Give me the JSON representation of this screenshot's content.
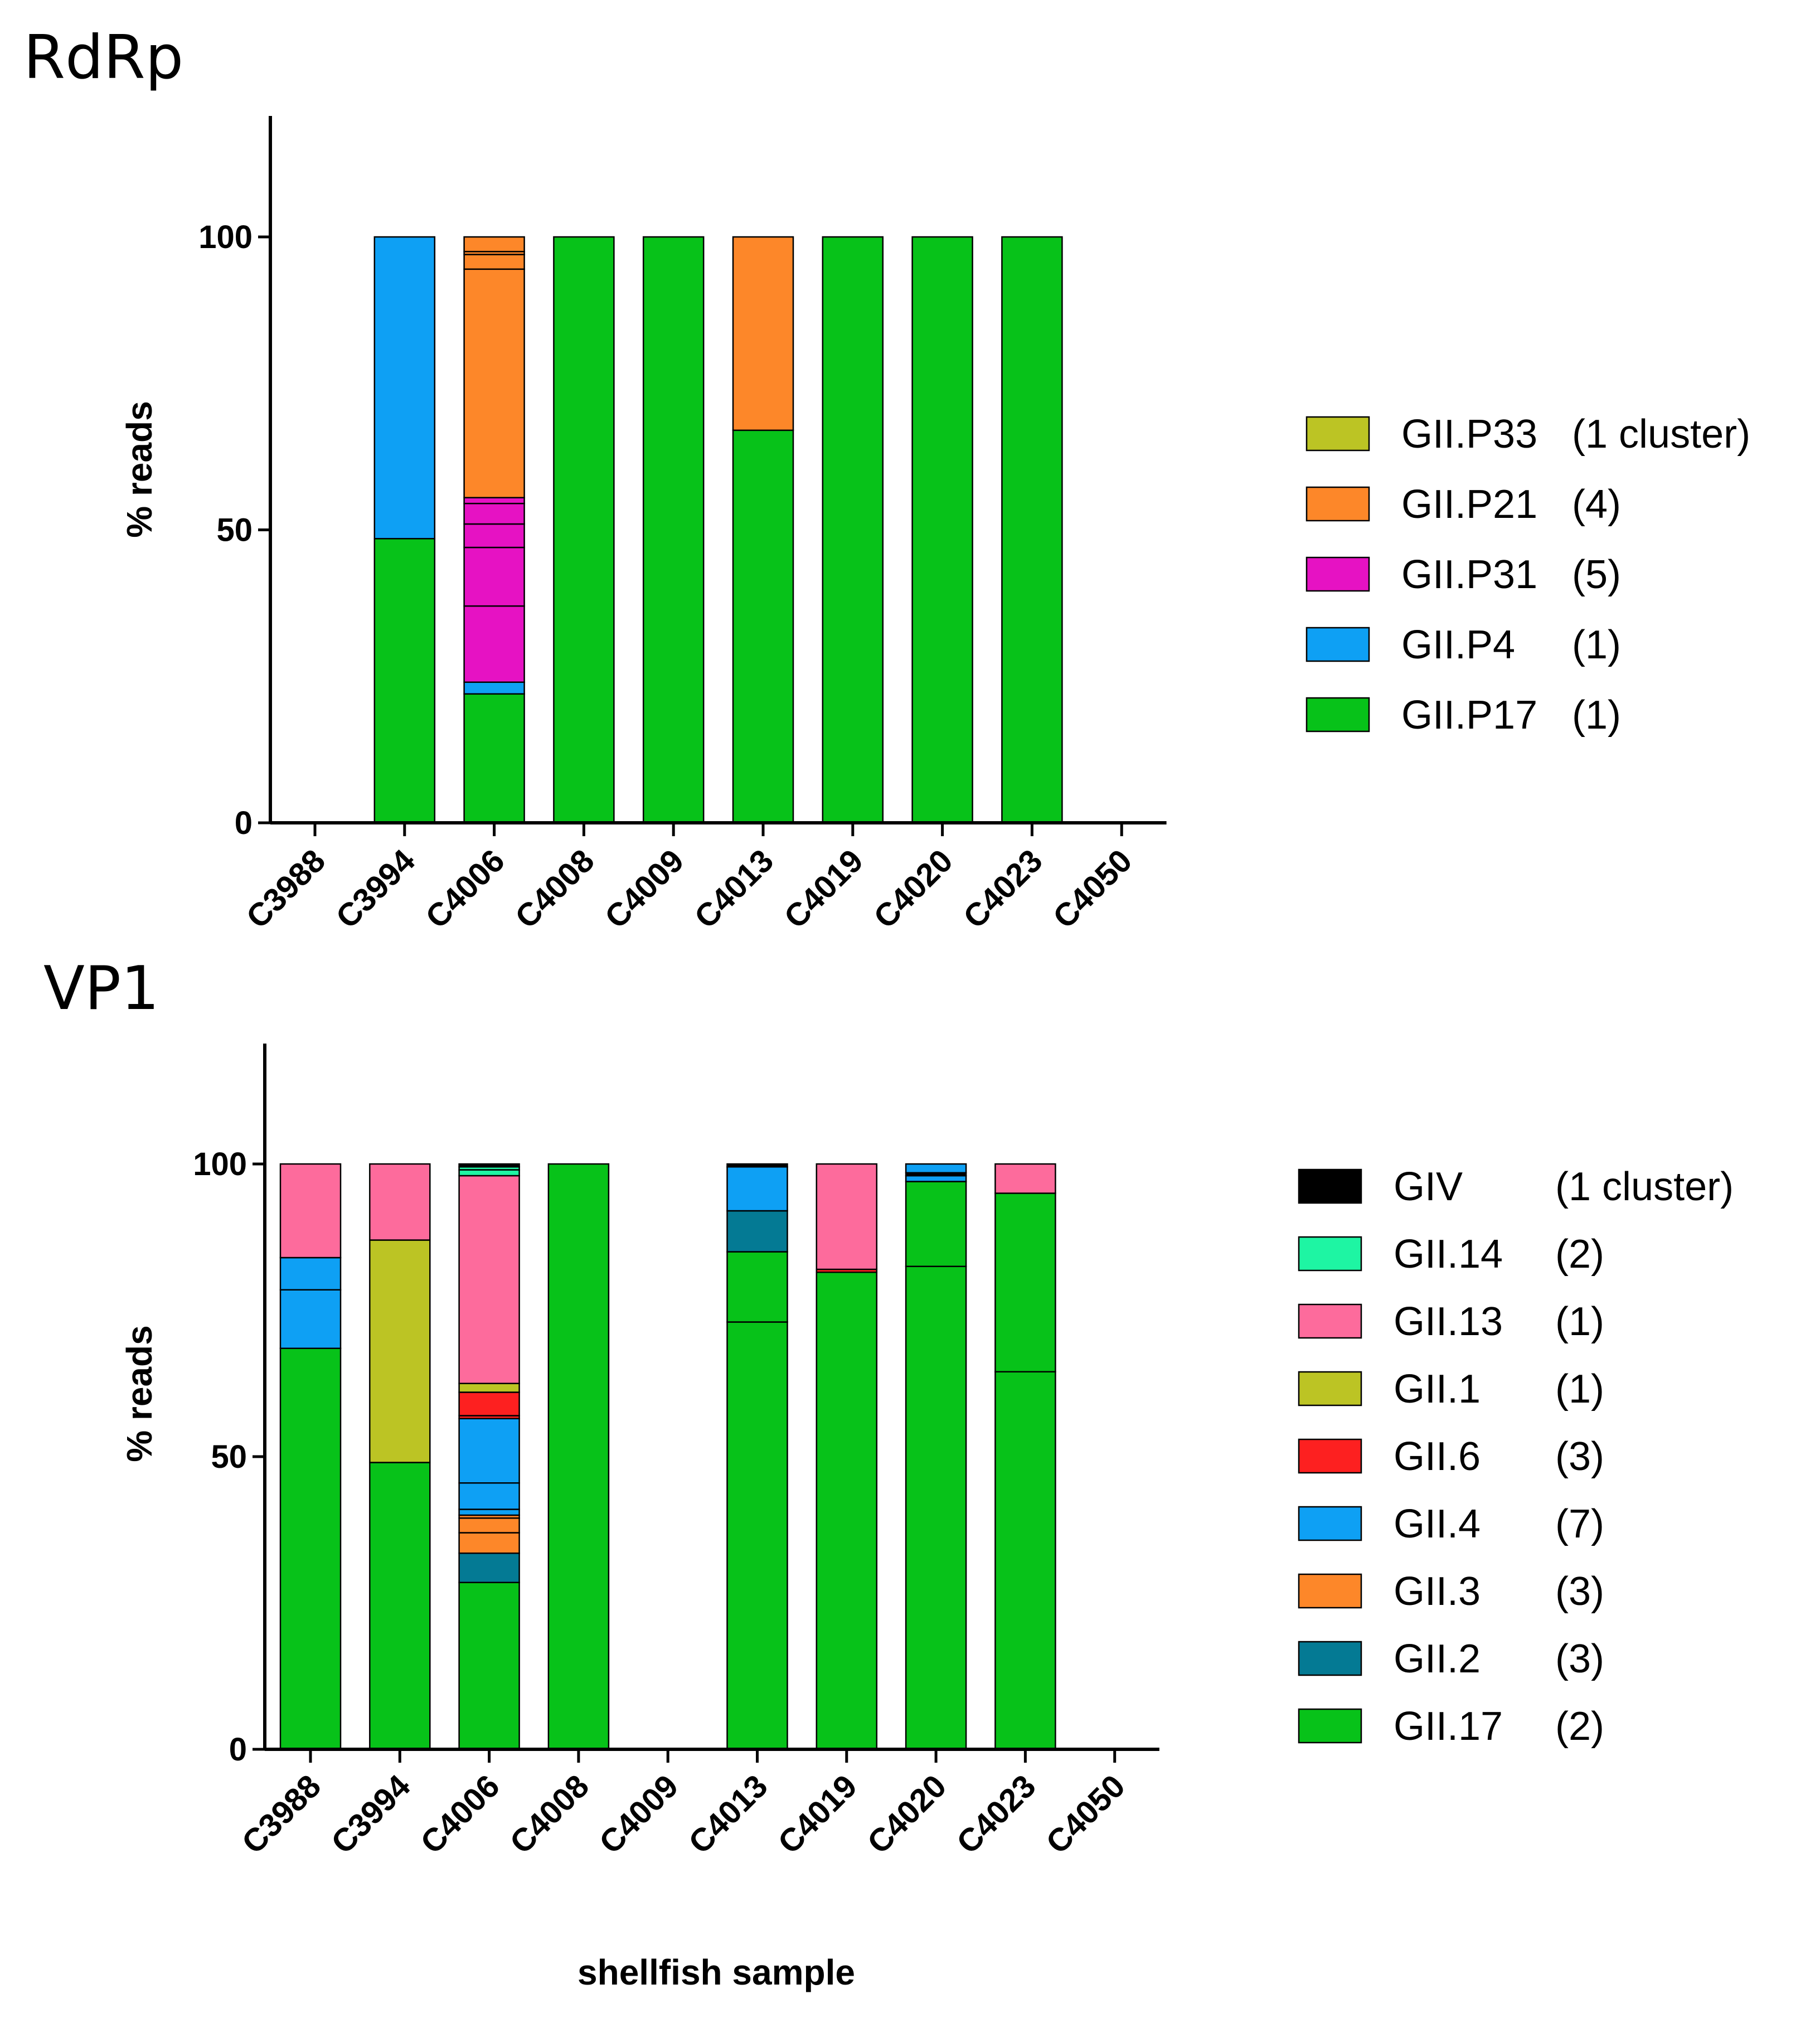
{
  "shared": {
    "xlabel": "shellfish sample",
    "color_map": {
      "GII.P33": "#BCC424",
      "GII.P21": "#FD8729",
      "GII.P31": "#E612C3",
      "GII.P4": "#0EA0F4",
      "GII.P17": "#07C219",
      "GIV": "#000000",
      "GII.14": "#1EF5A3",
      "GII.13": "#FD6B9C",
      "GII.1": "#BCC424",
      "GII.6": "#FD2020",
      "GII.4": "#0EA0F4",
      "GII.3": "#FD8729",
      "GII.2": "#047A94",
      "GII.17": "#07C219"
    }
  },
  "chart_data": [
    {
      "type": "bar",
      "stacked": true,
      "title": "RdRp",
      "xlabel": "",
      "ylabel": "% reads",
      "ylim": [
        0,
        120
      ],
      "yticks": [
        0,
        50,
        100
      ],
      "categories": [
        "C3988",
        "C3994",
        "C4006",
        "C4008",
        "C4009",
        "C4013",
        "C4019",
        "C4020",
        "C4023",
        "C4050"
      ],
      "legend": [
        {
          "name": "GII.P33",
          "count": "(1 cluster)"
        },
        {
          "name": "GII.P21",
          "count": "(4)"
        },
        {
          "name": "GII.P31",
          "count": "(5)"
        },
        {
          "name": "GII.P4",
          "count": "(1)"
        },
        {
          "name": "GII.P17",
          "count": "(1)"
        }
      ],
      "bars": [
        [],
        [
          [
            "GII.P17",
            48.5
          ],
          [
            "GII.P4",
            51.5
          ]
        ],
        [
          [
            "GII.P17",
            22
          ],
          [
            "GII.P4",
            2
          ],
          [
            "GII.P31",
            13
          ],
          [
            "GII.P31",
            10
          ],
          [
            "GII.P31",
            4
          ],
          [
            "GII.P31",
            3.5
          ],
          [
            "GII.P31",
            1
          ],
          [
            "GII.P21",
            39
          ],
          [
            "GII.P21",
            2.5
          ],
          [
            "GII.P21",
            0.5
          ],
          [
            "GII.P21",
            2.5
          ]
        ],
        [
          [
            "GII.P17",
            100
          ]
        ],
        [
          [
            "GII.P17",
            100
          ]
        ],
        [
          [
            "GII.P17",
            67
          ],
          [
            "GII.P21",
            33
          ]
        ],
        [
          [
            "GII.P17",
            100
          ]
        ],
        [
          [
            "GII.P17",
            100
          ]
        ],
        [
          [
            "GII.P17",
            100
          ]
        ],
        []
      ]
    },
    {
      "type": "bar",
      "stacked": true,
      "title": "VP1",
      "xlabel": "shellfish sample",
      "ylabel": "% reads",
      "ylim": [
        0,
        120
      ],
      "yticks": [
        0,
        50,
        100
      ],
      "categories": [
        "C3988",
        "C3994",
        "C4006",
        "C4008",
        "C4009",
        "C4013",
        "C4019",
        "C4020",
        "C4023",
        "C4050"
      ],
      "legend": [
        {
          "name": "GIV",
          "count": "(1 cluster)"
        },
        {
          "name": "GII.14",
          "count": "(2)"
        },
        {
          "name": "GII.13",
          "count": "(1)"
        },
        {
          "name": "GII.1",
          "count": "(1)"
        },
        {
          "name": "GII.6",
          "count": "(3)"
        },
        {
          "name": "GII.4",
          "count": "(7)"
        },
        {
          "name": "GII.3",
          "count": "(3)"
        },
        {
          "name": "GII.2",
          "count": "(3)"
        },
        {
          "name": "GII.17",
          "count": "(2)"
        }
      ],
      "bars": [
        [
          [
            "GII.17",
            68.5
          ],
          [
            "GII.4",
            10
          ],
          [
            "GII.4",
            5.5
          ],
          [
            "GII.13",
            16
          ]
        ],
        [
          [
            "GII.17",
            49
          ],
          [
            "GII.1",
            38
          ],
          [
            "GII.13",
            13
          ]
        ],
        [
          [
            "GII.17",
            28.5
          ],
          [
            "GII.2",
            5
          ],
          [
            "GII.3",
            3.5
          ],
          [
            "GII.3",
            2.5
          ],
          [
            "GII.3",
            0.5
          ],
          [
            "GII.4",
            1
          ],
          [
            "GII.4",
            4.5
          ],
          [
            "GII.4",
            11
          ],
          [
            "GII.6",
            0.5
          ],
          [
            "GII.6",
            4
          ],
          [
            "GII.1",
            1.5
          ],
          [
            "GII.13",
            35.5
          ],
          [
            "GII.14",
            1
          ],
          [
            "GII.14",
            0.5
          ],
          [
            "GIV",
            0.5
          ]
        ],
        [
          [
            "GII.17",
            100
          ]
        ],
        [],
        [
          [
            "GII.17",
            73
          ],
          [
            "GII.17",
            12
          ],
          [
            "GII.2",
            7
          ],
          [
            "GII.4",
            7.5
          ],
          [
            "GIV",
            0.5
          ]
        ],
        [
          [
            "GII.17",
            81.5
          ],
          [
            "GII.6",
            0.5
          ],
          [
            "GII.13",
            18
          ]
        ],
        [
          [
            "GII.17",
            82.5
          ],
          [
            "GII.17",
            14.5
          ],
          [
            "GII.4",
            1
          ],
          [
            "GIV",
            0.5
          ],
          [
            "GII.4",
            1.5
          ]
        ],
        [
          [
            "GII.17",
            64.5
          ],
          [
            "GII.17",
            30.5
          ],
          [
            "GII.13",
            5
          ]
        ],
        []
      ]
    }
  ]
}
